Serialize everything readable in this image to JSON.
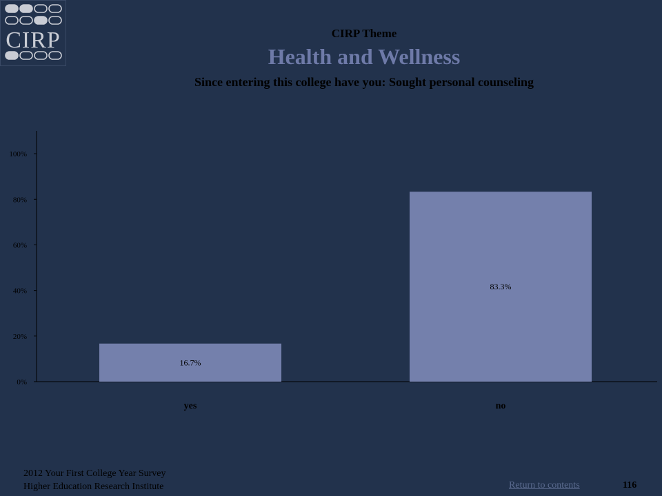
{
  "header": {
    "logo_text": "CIRP",
    "theme_label": "CIRP Theme",
    "theme_title": "Health and Wellness",
    "question": "Since entering this college have you: Sought personal counseling"
  },
  "chart_data": {
    "type": "bar",
    "categories": [
      "yes",
      "no"
    ],
    "values": [
      16.7,
      83.3
    ],
    "value_labels": [
      "16.7%",
      "83.3%"
    ],
    "y_ticks": [
      "0%",
      "20%",
      "40%",
      "60%",
      "80%",
      "100%"
    ],
    "ylim": [
      0,
      110
    ],
    "grid": false,
    "bar_color": "#7480ac",
    "background": "#22324c"
  },
  "footer": {
    "line1": "2012 Your First College Year Survey",
    "line2": "Higher Education Research Institute",
    "return_link": "Return to contents",
    "page_number": "116"
  }
}
